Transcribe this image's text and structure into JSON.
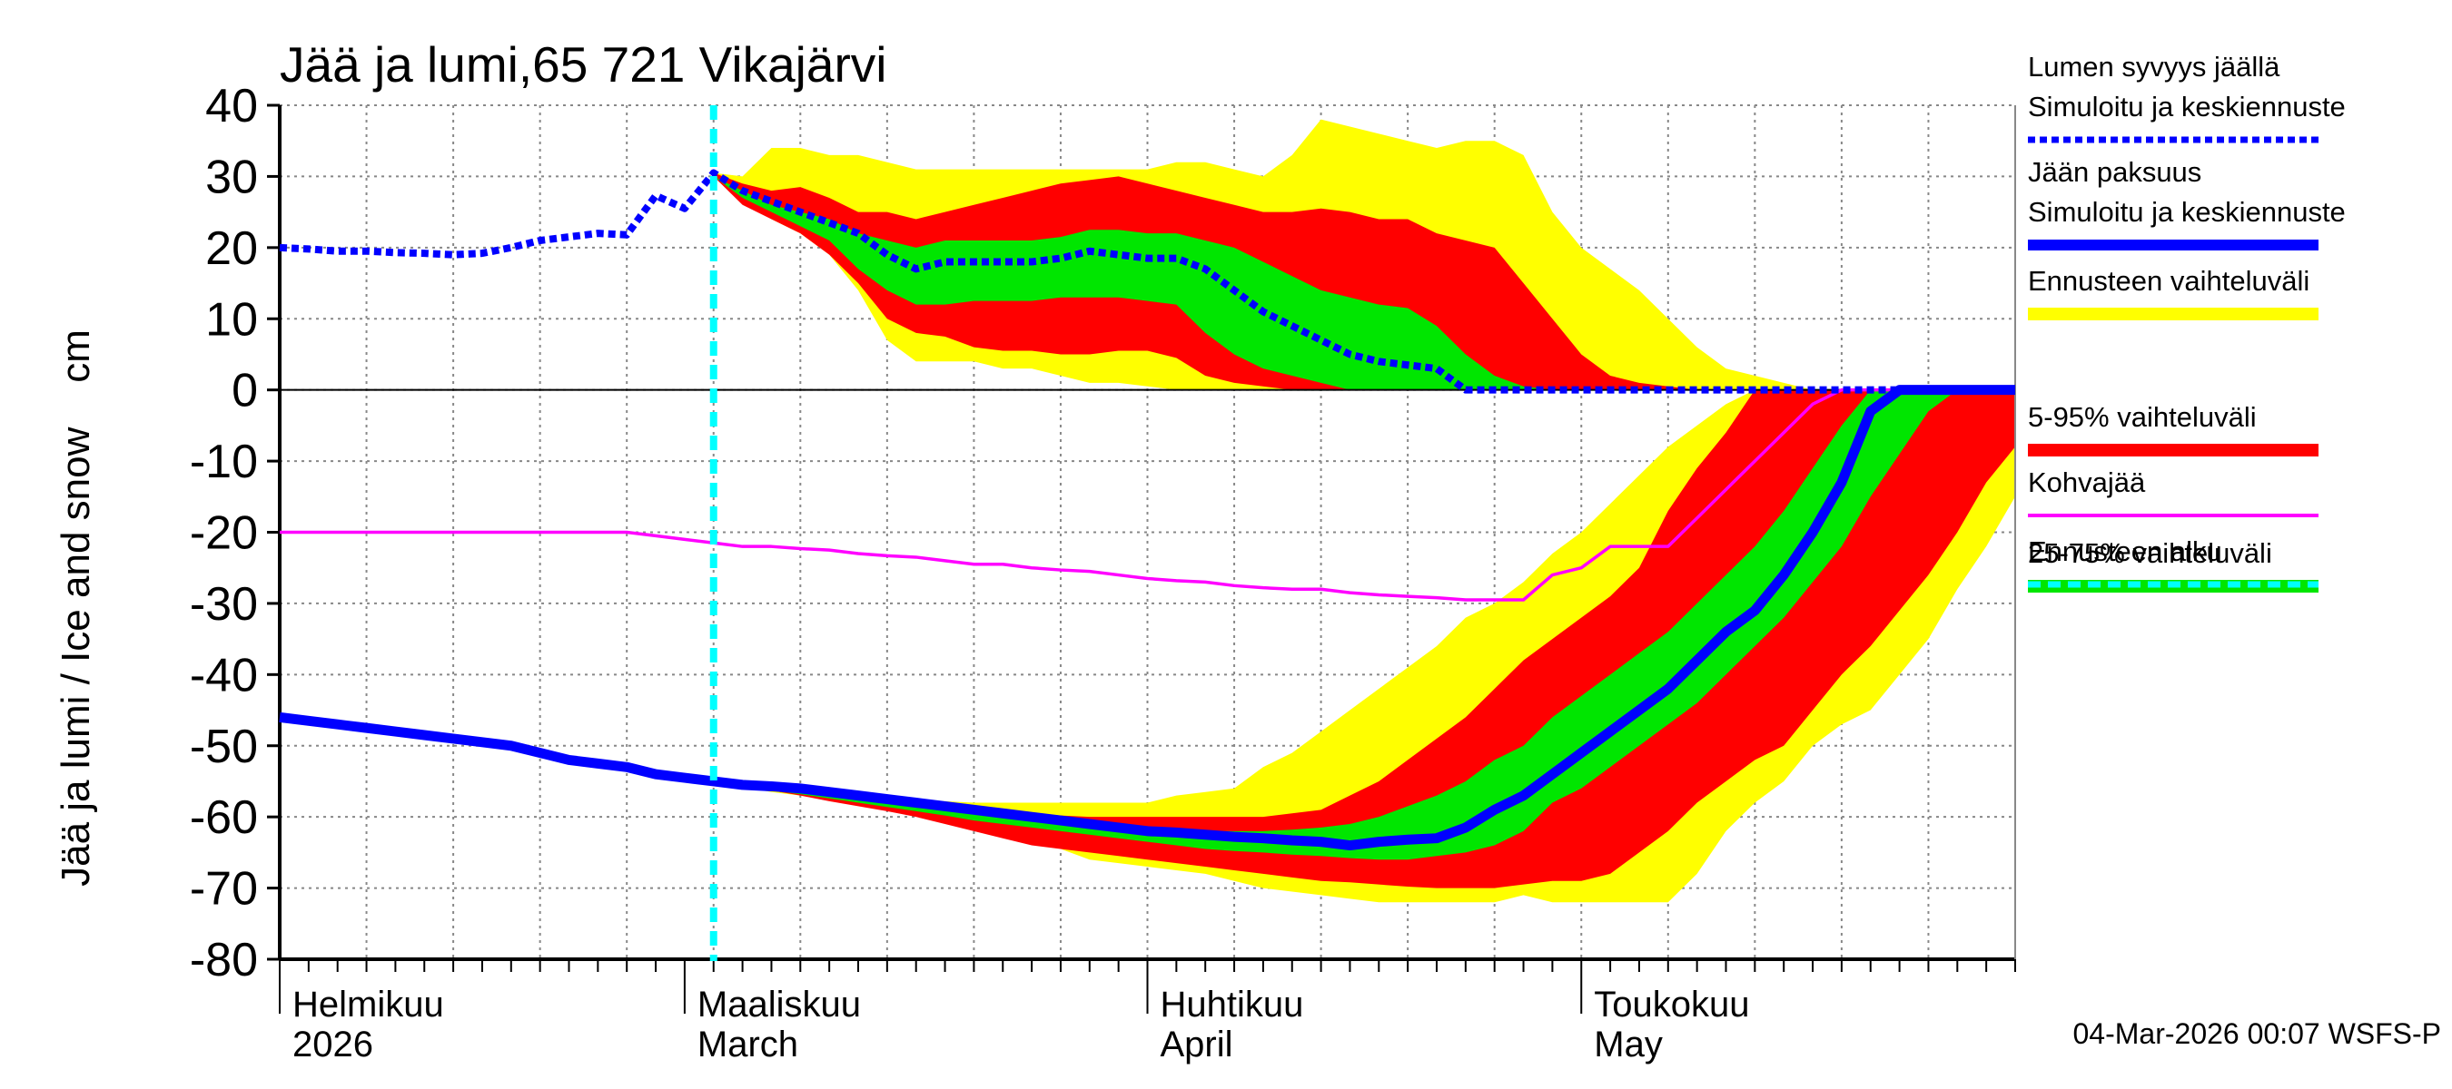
{
  "chart_data": {
    "type": "ice-snow",
    "title": "Jää ja lumi,65 721 Vikajärvi",
    "y_label": "Jää ja lumi / Ice and snow    cm",
    "footer": "04-Mar-2026 00:07 WSFS-P",
    "ylim": [
      -80,
      40
    ],
    "yticks": [
      -80,
      -70,
      -60,
      -50,
      -40,
      -30,
      -20,
      -10,
      0,
      10,
      20,
      30,
      40
    ],
    "grid": true,
    "categories": [
      "Helmikuu",
      null,
      null,
      null,
      null,
      null,
      null,
      null,
      null,
      null,
      null,
      null,
      null,
      null,
      "Maaliskuu",
      null,
      null,
      null,
      null,
      null,
      null,
      null,
      null,
      null,
      null,
      null,
      null,
      null,
      null,
      null,
      "Huhtikuu",
      null,
      null,
      null,
      null,
      null,
      null,
      null,
      null,
      null,
      null,
      null,
      null,
      null,
      null,
      "Toukokuu",
      null,
      null,
      null,
      null,
      null,
      null,
      null,
      null,
      null,
      null,
      null,
      null,
      null,
      null,
      null
    ],
    "categories_en": [
      "2026",
      null,
      null,
      null,
      null,
      null,
      null,
      null,
      null,
      null,
      null,
      null,
      null,
      null,
      "March",
      null,
      null,
      null,
      null,
      null,
      null,
      null,
      null,
      null,
      null,
      null,
      null,
      null,
      null,
      null,
      "April",
      null,
      null,
      null,
      null,
      null,
      null,
      null,
      null,
      null,
      null,
      null,
      null,
      null,
      null,
      "May",
      null,
      null,
      null,
      null,
      null,
      null,
      null,
      null,
      null,
      null,
      null,
      null,
      null,
      null,
      null
    ],
    "snow": {
      "name": "Lumen syvyys jäällä",
      "subname": "Simuloitu ja keskiennuste",
      "color": "#0000ff",
      "values": [
        20,
        19.8,
        19.5,
        19.5,
        19.3,
        19.2,
        19,
        19.2,
        20,
        21,
        21.5,
        22,
        21.8,
        27.3,
        25.5,
        30.5,
        28,
        26.5,
        25,
        23.5,
        22,
        19,
        17,
        18,
        18,
        18,
        18,
        18.5,
        19.5,
        19,
        18.5,
        18.5,
        17,
        14,
        11,
        9,
        7,
        5,
        4,
        3.5,
        3,
        0,
        0,
        0,
        0,
        0,
        0,
        0,
        0,
        0,
        0,
        0,
        0,
        0,
        0,
        0,
        0,
        0,
        0,
        0,
        0
      ]
    },
    "ice": {
      "name": "Jään paksuus",
      "subname": "Simuloitu ja keskiennuste",
      "color": "#0000ff",
      "values": [
        -46,
        -46.5,
        -47,
        -47.5,
        -48,
        -48.5,
        -49,
        -49.5,
        -50,
        -51,
        -52,
        -52.5,
        -53,
        -54,
        -54.5,
        -55,
        -55.5,
        -55.7,
        -56,
        -56.5,
        -57,
        -57.5,
        -58,
        -58.5,
        -59,
        -59.5,
        -60,
        -60.5,
        -61,
        -61.5,
        -62,
        -62.2,
        -62.5,
        -62.8,
        -63,
        -63.3,
        -63.5,
        -64,
        -63.5,
        -63.2,
        -63,
        -61.5,
        -59,
        -57,
        -54,
        -51,
        -48,
        -45,
        -42,
        -38,
        -34,
        -31,
        -26,
        -20,
        -13,
        -3,
        0,
        0,
        0,
        0,
        0
      ]
    },
    "bands": [
      {
        "name": "Ennusteen vaihteluväli",
        "color": "#ffff00",
        "snow_high": [
          null,
          null,
          null,
          null,
          null,
          null,
          null,
          null,
          null,
          null,
          null,
          null,
          null,
          null,
          null,
          30.5,
          30,
          34,
          34,
          33,
          33,
          32,
          31,
          31,
          31,
          31,
          31,
          31,
          31,
          31,
          31,
          32,
          32,
          31,
          30,
          33,
          38,
          37,
          36,
          35,
          34,
          35,
          35,
          33,
          25,
          20,
          17,
          14,
          10,
          6,
          3,
          2,
          1,
          0,
          0,
          0,
          0,
          0,
          0,
          0,
          0
        ],
        "snow_low": [
          null,
          null,
          null,
          null,
          null,
          null,
          null,
          null,
          null,
          null,
          null,
          null,
          null,
          null,
          null,
          30,
          27,
          24,
          22,
          19,
          14,
          7,
          4,
          4,
          4,
          3,
          3,
          2,
          1,
          1,
          0.5,
          0,
          0,
          0,
          0,
          0,
          0,
          0,
          0,
          0,
          0,
          0,
          0,
          0,
          0,
          0,
          0,
          0,
          0,
          0,
          0,
          0,
          0,
          0,
          0,
          0,
          0,
          0,
          0,
          0,
          0
        ],
        "ice_high": [
          null,
          null,
          null,
          null,
          null,
          null,
          null,
          null,
          null,
          null,
          null,
          null,
          null,
          null,
          null,
          -55,
          -55.5,
          -55.7,
          -56,
          -56.5,
          -57,
          -57.2,
          -57.5,
          -57.8,
          -58,
          -58,
          -58,
          -58,
          -58,
          -58,
          -58,
          -57,
          -56.5,
          -56,
          -53,
          -51,
          -48,
          -45,
          -42,
          -39,
          -36,
          -32,
          -30,
          -27,
          -23,
          -20,
          -16,
          -12,
          -8,
          -5,
          -2,
          0,
          0,
          0,
          0,
          0,
          0,
          0,
          0,
          0,
          0
        ],
        "ice_low": [
          null,
          null,
          null,
          null,
          null,
          null,
          null,
          null,
          null,
          null,
          null,
          null,
          null,
          null,
          null,
          -55,
          -55.8,
          -56.5,
          -57,
          -57.5,
          -58,
          -58.8,
          -59.5,
          -60.2,
          -61,
          -62,
          -63,
          -64.5,
          -66,
          -66.5,
          -67,
          -67.5,
          -68,
          -69,
          -70,
          -70.5,
          -71,
          -71.5,
          -72,
          -72,
          -72,
          -72,
          -72,
          -71,
          -72,
          -72,
          -72,
          -72,
          -72,
          -68,
          -62,
          -58,
          -55,
          -50,
          -47,
          -45,
          -40,
          -35,
          -28,
          -22,
          -15
        ]
      },
      {
        "name": "5-95% vaihteluväli",
        "color": "#ff0000",
        "snow_high": [
          null,
          null,
          null,
          null,
          null,
          null,
          null,
          null,
          null,
          null,
          null,
          null,
          null,
          null,
          null,
          30.5,
          29,
          28,
          28.5,
          27,
          25,
          25,
          24,
          25,
          26,
          27,
          28,
          29,
          29.5,
          30,
          29,
          28,
          27,
          26,
          25,
          25,
          25.5,
          25,
          24,
          24,
          22,
          21,
          20,
          15,
          10,
          5,
          2,
          1,
          0.5,
          0,
          0,
          0,
          0,
          0,
          0,
          0,
          0,
          0,
          0,
          0,
          0
        ],
        "snow_low": [
          null,
          null,
          null,
          null,
          null,
          null,
          null,
          null,
          null,
          null,
          null,
          null,
          null,
          null,
          null,
          30,
          26,
          24,
          22,
          19,
          15,
          10,
          8,
          7.5,
          6,
          5.5,
          5.5,
          5,
          5,
          5.5,
          5.5,
          4.5,
          2,
          1,
          0.5,
          0,
          0,
          0,
          0,
          0,
          0,
          0,
          0,
          0,
          0,
          0,
          0,
          0,
          0,
          0,
          0,
          0,
          0,
          0,
          0,
          0,
          0,
          0,
          0,
          0,
          0
        ],
        "ice_high": [
          null,
          null,
          null,
          null,
          null,
          null,
          null,
          null,
          null,
          null,
          null,
          null,
          null,
          null,
          null,
          -55,
          -55.5,
          -56,
          -56.5,
          -57,
          -57.5,
          -58,
          -58.5,
          -58.8,
          -59,
          -59.2,
          -59.5,
          -59.8,
          -60,
          -60,
          -60,
          -60,
          -60,
          -60,
          -60,
          -59.5,
          -59,
          -57,
          -55,
          -52,
          -49,
          -46,
          -42,
          -38,
          -35,
          -32,
          -29,
          -25,
          -17,
          -11,
          -6,
          0,
          0,
          0,
          0,
          0,
          0,
          0,
          0,
          0,
          0
        ],
        "ice_low": [
          null,
          null,
          null,
          null,
          null,
          null,
          null,
          null,
          null,
          null,
          null,
          null,
          null,
          null,
          null,
          -55,
          -55.7,
          -56.3,
          -57,
          -57.8,
          -58.5,
          -59.2,
          -60,
          -61,
          -62,
          -63,
          -64,
          -64.5,
          -65,
          -65.5,
          -66,
          -66.5,
          -67,
          -67.5,
          -68,
          -68.5,
          -69,
          -69.2,
          -69.5,
          -69.8,
          -70,
          -70,
          -70,
          -69.5,
          -69,
          -69,
          -68,
          -65,
          -62,
          -58,
          -55,
          -52,
          -50,
          -45,
          -40,
          -36,
          -31,
          -26,
          -20,
          -13,
          -8
        ]
      },
      {
        "name": "25-75% vaihteluväli",
        "color": "#00e600",
        "snow_high": [
          null,
          null,
          null,
          null,
          null,
          null,
          null,
          null,
          null,
          null,
          null,
          null,
          null,
          null,
          null,
          30,
          28,
          26,
          25,
          24,
          22,
          21,
          20,
          21,
          21,
          21,
          21,
          21.5,
          22.5,
          22.5,
          22,
          22,
          21,
          20,
          18,
          16,
          14,
          13,
          12,
          11.5,
          9,
          5,
          2,
          0.5,
          0,
          0,
          0,
          0,
          0,
          0,
          0,
          0,
          0,
          0,
          0,
          0,
          0,
          0,
          0,
          0,
          0
        ],
        "snow_low": [
          null,
          null,
          null,
          null,
          null,
          null,
          null,
          null,
          null,
          null,
          null,
          null,
          null,
          null,
          null,
          30,
          27,
          25,
          23,
          21,
          17,
          14,
          12,
          12,
          12.5,
          12.5,
          12.5,
          13,
          13,
          13,
          12.5,
          12,
          8,
          5,
          3,
          2,
          1,
          0,
          0,
          0,
          0,
          0,
          0,
          0,
          0,
          0,
          0,
          0,
          0,
          0,
          0,
          0,
          0,
          0,
          0,
          0,
          0,
          0,
          0,
          0,
          0
        ],
        "ice_high": [
          null,
          null,
          null,
          null,
          null,
          null,
          null,
          null,
          null,
          null,
          null,
          null,
          null,
          null,
          null,
          -55,
          -55.3,
          -55.6,
          -56,
          -56.5,
          -57,
          -57.5,
          -58,
          -58.5,
          -59,
          -59.5,
          -60,
          -60.5,
          -61,
          -61.2,
          -61.5,
          -61.8,
          -62,
          -62,
          -62,
          -61.8,
          -61.5,
          -61,
          -60,
          -58.5,
          -57,
          -55,
          -52,
          -50,
          -46,
          -43,
          -40,
          -37,
          -34,
          -30,
          -26,
          -22,
          -17,
          -11,
          -5,
          0,
          0,
          0,
          0,
          0,
          0
        ],
        "ice_low": [
          null,
          null,
          null,
          null,
          null,
          null,
          null,
          null,
          null,
          null,
          null,
          null,
          null,
          null,
          null,
          -55,
          -55.8,
          -56.3,
          -56.8,
          -57.4,
          -58,
          -58.6,
          -59.2,
          -59.8,
          -60.5,
          -61,
          -61.5,
          -62,
          -62.5,
          -63,
          -63.5,
          -64,
          -64.5,
          -64.8,
          -65,
          -65.3,
          -65.5,
          -65.8,
          -66,
          -66,
          -65.5,
          -65,
          -64,
          -62,
          -58,
          -56,
          -53,
          -50,
          -47,
          -44,
          -40,
          -36,
          -32,
          -27,
          -22,
          -15,
          -9,
          -3,
          0,
          0,
          0
        ]
      }
    ],
    "kohva": {
      "name": "Kohvajää",
      "color": "#ff00ff",
      "values": [
        -20,
        -20,
        -20,
        -20,
        -20,
        -20,
        -20,
        -20,
        -20,
        -20,
        -20,
        -20,
        -20,
        -20.5,
        -21,
        -21.5,
        -22,
        -22,
        -22.3,
        -22.5,
        -23,
        -23.3,
        -23.5,
        -24,
        -24.5,
        -24.5,
        -25,
        -25.3,
        -25.5,
        -26,
        -26.5,
        -26.8,
        -27,
        -27.5,
        -27.8,
        -28,
        -28,
        -28.5,
        -28.8,
        -29,
        -29.2,
        -29.5,
        -29.5,
        -29.5,
        -26,
        -25,
        -22,
        -22,
        -22,
        -18,
        -14,
        -10,
        -6,
        -2,
        0,
        0,
        0,
        0,
        0,
        0,
        0
      ]
    },
    "forecast_start": {
      "name": "Ennusteen alku",
      "color": "#00ffff",
      "index": 15
    }
  }
}
